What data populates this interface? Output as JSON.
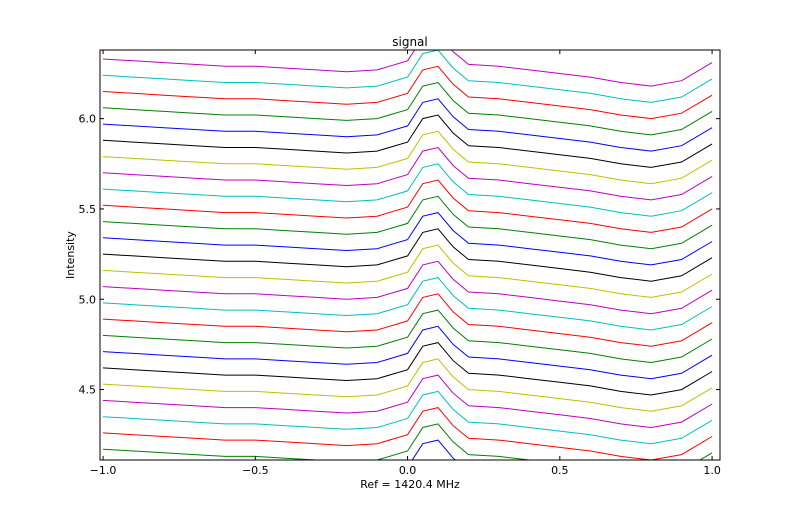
{
  "chart_data": {
    "type": "line",
    "title": "signal",
    "xlabel": "Ref = 1420.4 MHz",
    "ylabel": "Intensity",
    "x": [
      -1.0,
      -0.9,
      -0.8,
      -0.7,
      -0.6,
      -0.5,
      -0.4,
      -0.3,
      -0.2,
      -0.1,
      0.0,
      0.05,
      0.1,
      0.15,
      0.2,
      0.3,
      0.4,
      0.5,
      0.6,
      0.7,
      0.8,
      0.9,
      1.0
    ],
    "xlim": [
      -1.01,
      1.026
    ],
    "ylim": [
      4.11,
      6.38
    ],
    "xticks": [
      {
        "value": -1.0,
        "label": "−1.0"
      },
      {
        "value": -0.5,
        "label": "−0.5"
      },
      {
        "value": 0.0,
        "label": "0.0"
      },
      {
        "value": 0.5,
        "label": "0.5"
      },
      {
        "value": 1.0,
        "label": "1.0"
      }
    ],
    "yticks": [
      {
        "value": 4.5,
        "label": "4.5"
      },
      {
        "value": 5.0,
        "label": "5.0"
      },
      {
        "value": 5.5,
        "label": "5.5"
      },
      {
        "value": 6.0,
        "label": "6.0"
      }
    ],
    "series": [
      {
        "color": "#0000ff",
        "values": [
          4.08,
          4.07,
          4.06,
          4.05,
          4.04,
          4.04,
          4.03,
          4.02,
          4.01,
          4.02,
          4.07,
          4.2,
          4.22,
          4.12,
          4.05,
          4.04,
          4.02,
          4.0,
          3.98,
          3.95,
          3.93,
          3.96,
          4.06
        ]
      },
      {
        "color": "#008000",
        "values": [
          4.17,
          4.16,
          4.15,
          4.14,
          4.13,
          4.13,
          4.12,
          4.11,
          4.1,
          4.11,
          4.16,
          4.29,
          4.31,
          4.21,
          4.14,
          4.13,
          4.11,
          4.09,
          4.07,
          4.04,
          4.02,
          4.05,
          4.15
        ]
      },
      {
        "color": "#ff0000",
        "values": [
          4.26,
          4.25,
          4.24,
          4.23,
          4.22,
          4.22,
          4.21,
          4.2,
          4.19,
          4.2,
          4.25,
          4.38,
          4.4,
          4.3,
          4.23,
          4.22,
          4.2,
          4.18,
          4.16,
          4.13,
          4.11,
          4.14,
          4.24
        ]
      },
      {
        "color": "#00bfbf",
        "values": [
          4.35,
          4.34,
          4.33,
          4.32,
          4.31,
          4.31,
          4.3,
          4.29,
          4.28,
          4.29,
          4.34,
          4.47,
          4.49,
          4.39,
          4.32,
          4.31,
          4.29,
          4.27,
          4.25,
          4.22,
          4.2,
          4.23,
          4.33
        ]
      },
      {
        "color": "#bf00bf",
        "values": [
          4.44,
          4.43,
          4.42,
          4.41,
          4.4,
          4.4,
          4.39,
          4.38,
          4.37,
          4.38,
          4.43,
          4.56,
          4.58,
          4.48,
          4.41,
          4.4,
          4.38,
          4.36,
          4.34,
          4.31,
          4.29,
          4.32,
          4.42
        ]
      },
      {
        "color": "#bfbf00",
        "values": [
          4.53,
          4.52,
          4.51,
          4.5,
          4.49,
          4.49,
          4.48,
          4.47,
          4.46,
          4.47,
          4.52,
          4.65,
          4.67,
          4.57,
          4.5,
          4.49,
          4.47,
          4.45,
          4.43,
          4.4,
          4.38,
          4.41,
          4.51
        ]
      },
      {
        "color": "#000000",
        "values": [
          4.62,
          4.61,
          4.6,
          4.59,
          4.58,
          4.58,
          4.57,
          4.56,
          4.55,
          4.56,
          4.61,
          4.74,
          4.76,
          4.66,
          4.59,
          4.58,
          4.56,
          4.54,
          4.52,
          4.49,
          4.47,
          4.5,
          4.6
        ]
      },
      {
        "color": "#0000ff",
        "values": [
          4.71,
          4.7,
          4.69,
          4.68,
          4.67,
          4.67,
          4.66,
          4.65,
          4.64,
          4.65,
          4.7,
          4.83,
          4.85,
          4.75,
          4.68,
          4.67,
          4.65,
          4.63,
          4.61,
          4.58,
          4.56,
          4.59,
          4.69
        ]
      },
      {
        "color": "#008000",
        "values": [
          4.8,
          4.79,
          4.78,
          4.77,
          4.76,
          4.76,
          4.75,
          4.74,
          4.73,
          4.74,
          4.79,
          4.92,
          4.94,
          4.84,
          4.77,
          4.76,
          4.74,
          4.72,
          4.7,
          4.67,
          4.65,
          4.68,
          4.78
        ]
      },
      {
        "color": "#ff0000",
        "values": [
          4.89,
          4.88,
          4.87,
          4.86,
          4.85,
          4.85,
          4.84,
          4.83,
          4.82,
          4.83,
          4.88,
          5.01,
          5.03,
          4.93,
          4.86,
          4.85,
          4.83,
          4.81,
          4.79,
          4.76,
          4.74,
          4.77,
          4.87
        ]
      },
      {
        "color": "#00bfbf",
        "values": [
          4.98,
          4.97,
          4.96,
          4.95,
          4.94,
          4.94,
          4.93,
          4.92,
          4.91,
          4.92,
          4.97,
          5.1,
          5.12,
          5.02,
          4.95,
          4.94,
          4.92,
          4.9,
          4.88,
          4.85,
          4.83,
          4.86,
          4.96
        ]
      },
      {
        "color": "#bf00bf",
        "values": [
          5.07,
          5.06,
          5.05,
          5.04,
          5.03,
          5.03,
          5.02,
          5.01,
          5.0,
          5.01,
          5.06,
          5.19,
          5.21,
          5.11,
          5.04,
          5.03,
          5.01,
          4.99,
          4.97,
          4.94,
          4.92,
          4.95,
          5.05
        ]
      },
      {
        "color": "#bfbf00",
        "values": [
          5.16,
          5.15,
          5.14,
          5.13,
          5.12,
          5.12,
          5.11,
          5.1,
          5.09,
          5.1,
          5.15,
          5.28,
          5.3,
          5.2,
          5.13,
          5.12,
          5.1,
          5.08,
          5.06,
          5.03,
          5.01,
          5.04,
          5.14
        ]
      },
      {
        "color": "#000000",
        "values": [
          5.25,
          5.24,
          5.23,
          5.22,
          5.21,
          5.21,
          5.2,
          5.19,
          5.18,
          5.19,
          5.24,
          5.37,
          5.39,
          5.29,
          5.22,
          5.21,
          5.19,
          5.17,
          5.15,
          5.12,
          5.1,
          5.13,
          5.23
        ]
      },
      {
        "color": "#0000ff",
        "values": [
          5.34,
          5.33,
          5.32,
          5.31,
          5.3,
          5.3,
          5.29,
          5.28,
          5.27,
          5.28,
          5.33,
          5.46,
          5.48,
          5.38,
          5.31,
          5.3,
          5.28,
          5.26,
          5.24,
          5.21,
          5.19,
          5.22,
          5.32
        ]
      },
      {
        "color": "#008000",
        "values": [
          5.43,
          5.42,
          5.41,
          5.4,
          5.39,
          5.39,
          5.38,
          5.37,
          5.36,
          5.37,
          5.42,
          5.55,
          5.57,
          5.47,
          5.4,
          5.39,
          5.37,
          5.35,
          5.33,
          5.3,
          5.28,
          5.31,
          5.41
        ]
      },
      {
        "color": "#ff0000",
        "values": [
          5.52,
          5.51,
          5.5,
          5.49,
          5.48,
          5.48,
          5.47,
          5.46,
          5.45,
          5.46,
          5.51,
          5.64,
          5.66,
          5.56,
          5.49,
          5.48,
          5.46,
          5.44,
          5.42,
          5.39,
          5.37,
          5.4,
          5.5
        ]
      },
      {
        "color": "#00bfbf",
        "values": [
          5.61,
          5.6,
          5.59,
          5.58,
          5.57,
          5.57,
          5.56,
          5.55,
          5.54,
          5.55,
          5.6,
          5.73,
          5.75,
          5.65,
          5.58,
          5.57,
          5.55,
          5.53,
          5.51,
          5.48,
          5.46,
          5.49,
          5.59
        ]
      },
      {
        "color": "#bf00bf",
        "values": [
          5.7,
          5.69,
          5.68,
          5.67,
          5.66,
          5.66,
          5.65,
          5.64,
          5.63,
          5.64,
          5.69,
          5.82,
          5.84,
          5.74,
          5.67,
          5.66,
          5.64,
          5.62,
          5.6,
          5.57,
          5.55,
          5.58,
          5.68
        ]
      },
      {
        "color": "#bfbf00",
        "values": [
          5.79,
          5.78,
          5.77,
          5.76,
          5.75,
          5.75,
          5.74,
          5.73,
          5.72,
          5.73,
          5.78,
          5.91,
          5.93,
          5.83,
          5.76,
          5.75,
          5.73,
          5.71,
          5.69,
          5.66,
          5.64,
          5.67,
          5.77
        ]
      },
      {
        "color": "#000000",
        "values": [
          5.88,
          5.87,
          5.86,
          5.85,
          5.84,
          5.84,
          5.83,
          5.82,
          5.81,
          5.82,
          5.87,
          6.0,
          6.02,
          5.92,
          5.85,
          5.84,
          5.82,
          5.8,
          5.78,
          5.75,
          5.73,
          5.76,
          5.86
        ]
      },
      {
        "color": "#0000ff",
        "values": [
          5.97,
          5.96,
          5.95,
          5.94,
          5.93,
          5.93,
          5.92,
          5.91,
          5.9,
          5.91,
          5.96,
          6.09,
          6.11,
          6.01,
          5.94,
          5.93,
          5.91,
          5.89,
          5.87,
          5.84,
          5.82,
          5.85,
          5.95
        ]
      },
      {
        "color": "#008000",
        "values": [
          6.06,
          6.05,
          6.04,
          6.03,
          6.02,
          6.02,
          6.01,
          6.0,
          5.99,
          6.0,
          6.05,
          6.18,
          6.2,
          6.1,
          6.03,
          6.02,
          6.0,
          5.98,
          5.96,
          5.93,
          5.91,
          5.94,
          6.04
        ]
      },
      {
        "color": "#ff0000",
        "values": [
          6.15,
          6.14,
          6.13,
          6.12,
          6.11,
          6.11,
          6.1,
          6.09,
          6.08,
          6.09,
          6.14,
          6.27,
          6.29,
          6.19,
          6.12,
          6.11,
          6.09,
          6.07,
          6.05,
          6.02,
          6.0,
          6.03,
          6.13
        ]
      },
      {
        "color": "#00bfbf",
        "values": [
          6.24,
          6.23,
          6.22,
          6.21,
          6.2,
          6.2,
          6.19,
          6.18,
          6.17,
          6.18,
          6.23,
          6.36,
          6.38,
          6.28,
          6.21,
          6.2,
          6.18,
          6.16,
          6.14,
          6.11,
          6.09,
          6.12,
          6.22
        ]
      },
      {
        "color": "#bf00bf",
        "values": [
          6.33,
          6.32,
          6.31,
          6.3,
          6.29,
          6.29,
          6.28,
          6.27,
          6.26,
          6.27,
          6.32,
          6.45,
          6.47,
          6.37,
          6.3,
          6.29,
          6.27,
          6.25,
          6.23,
          6.2,
          6.18,
          6.21,
          6.31
        ]
      }
    ]
  }
}
